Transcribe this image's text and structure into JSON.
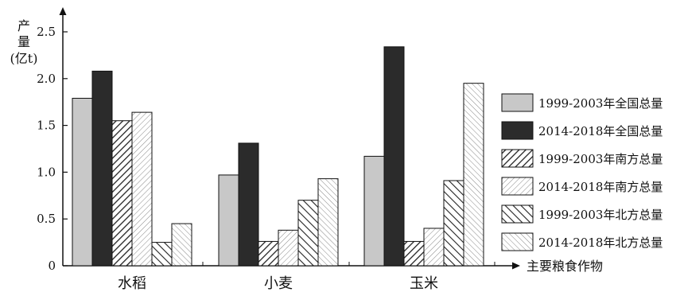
{
  "chart_data": {
    "type": "bar",
    "ylabel_lines": [
      "产",
      "量",
      "(亿t)"
    ],
    "xlabel": "主要粮食作物",
    "categories": [
      "水稻",
      "小麦",
      "玉米"
    ],
    "yticks": [
      "0",
      "0.5",
      "1.0",
      "1.5",
      "2.0",
      "2.5"
    ],
    "ylim": [
      0,
      2.5
    ],
    "grid": false,
    "legend_position": "right",
    "series": [
      {
        "name": "1999-2003年全国总量",
        "values": [
          1.79,
          0.97,
          1.17
        ],
        "style": "light-gray",
        "color": "#c8c8c8"
      },
      {
        "name": "2014-2018年全国总量",
        "values": [
          2.08,
          1.31,
          2.34
        ],
        "style": "dark",
        "color": "#2b2b2b"
      },
      {
        "name": "1999-2003年南方总量",
        "values": [
          1.55,
          0.26,
          0.26
        ],
        "style": "dense-diagonal",
        "color": "#333333"
      },
      {
        "name": "2014-2018年南方总量",
        "values": [
          1.64,
          0.38,
          0.4
        ],
        "style": "sparse-diagonal",
        "color": "#777777"
      },
      {
        "name": "1999-2003年北方总量",
        "values": [
          0.25,
          0.7,
          0.91
        ],
        "style": "dense-backslash",
        "color": "#333333"
      },
      {
        "name": "2014-2018年北方总量",
        "values": [
          0.45,
          0.93,
          1.95
        ],
        "style": "sparse-backslash",
        "color": "#777777"
      }
    ]
  }
}
